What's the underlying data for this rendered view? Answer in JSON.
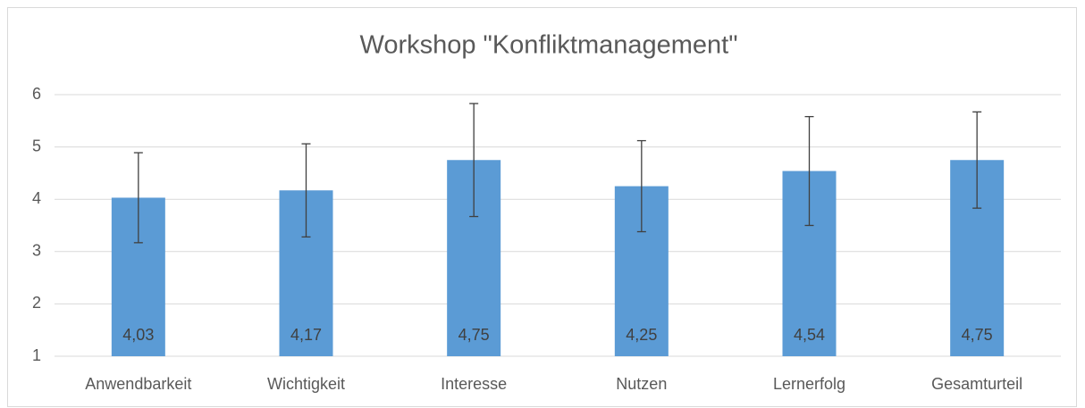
{
  "chart_data": {
    "type": "bar",
    "title": "Workshop \"Konfliktmanagement\"",
    "categories": [
      "Anwendbarkeit",
      "Wichtigkeit",
      "Interesse",
      "Nutzen",
      "Lernerfolg",
      "Gesamturteil"
    ],
    "values": [
      4.03,
      4.17,
      4.75,
      4.25,
      4.54,
      4.75
    ],
    "value_labels": [
      "4,03",
      "4,17",
      "4,75",
      "4,25",
      "4,54",
      "4,75"
    ],
    "errors": [
      0.86,
      0.89,
      1.08,
      0.87,
      1.04,
      0.92
    ],
    "color": "#5b9bd5",
    "ylim": [
      1,
      6
    ],
    "yticks": [
      1,
      2,
      3,
      4,
      5,
      6
    ],
    "grid": true
  }
}
